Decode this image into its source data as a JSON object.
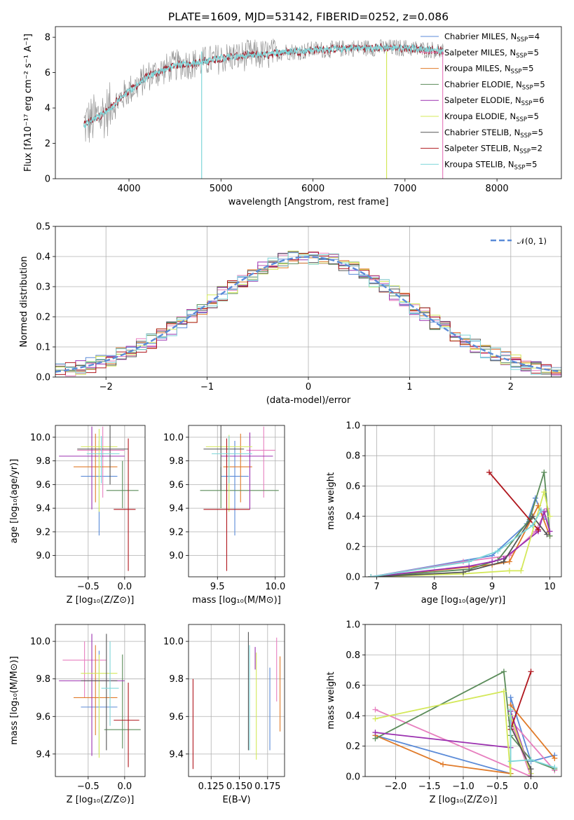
{
  "figure_title": "PLATE=1609, MJD=53142, FIBERID=0252, z=0.086",
  "colors": {
    "Chabrier MILES": "#5b8bd8",
    "Salpeter MILES": "#e77fbf",
    "Kroupa MILES": "#e07b2a",
    "Chabrier ELODIE": "#5b8c5a",
    "Salpeter ELODIE": "#9b30b0",
    "Kroupa ELODIE": "#d4e85a",
    "Chabrier STELIB": "#555555",
    "Salpeter STELIB": "#b0171e",
    "Kroupa STELIB": "#7ed6d9",
    "normal": "#5b8bd8"
  },
  "chart_data": [
    {
      "id": "spectrum",
      "type": "line",
      "title": "PLATE=1609, MJD=53142, FIBERID=0252, z=0.086",
      "xlabel": "wavelength [Angstrom, rest frame]",
      "ylabel": "Flux [fλ10⁻¹⁷ erg cm⁻² s⁻¹ A⁻¹]",
      "xlim": [
        3200,
        8700
      ],
      "ylim": [
        0,
        8.6
      ],
      "xticks": [
        "4000",
        "5000",
        "6000",
        "7000",
        "8000"
      ],
      "yticks": [
        "0",
        "2",
        "4",
        "6",
        "8"
      ],
      "legend_position": "upper-right",
      "legend": [
        {
          "name": "Chabrier MILES, N",
          "sub": "SSP",
          "tail": "=4",
          "color_key": "Chabrier MILES"
        },
        {
          "name": "Salpeter MILES, N",
          "sub": "SSP",
          "tail": "=5",
          "color_key": "Salpeter MILES"
        },
        {
          "name": "Kroupa MILES, N",
          "sub": "SSP",
          "tail": "=5",
          "color_key": "Kroupa MILES"
        },
        {
          "name": "Chabrier ELODIE, N",
          "sub": "SSP",
          "tail": "=5",
          "color_key": "Chabrier ELODIE"
        },
        {
          "name": "Salpeter ELODIE, N",
          "sub": "SSP",
          "tail": "=6",
          "color_key": "Salpeter ELODIE"
        },
        {
          "name": "Kroupa ELODIE, N",
          "sub": "SSP",
          "tail": "=5",
          "color_key": "Kroupa ELODIE"
        },
        {
          "name": "Chabrier STELIB, N",
          "sub": "SSP",
          "tail": "=5",
          "color_key": "Chabrier STELIB"
        },
        {
          "name": "Salpeter STELIB, N",
          "sub": "SSP",
          "tail": "=2",
          "color_key": "Salpeter STELIB"
        },
        {
          "name": "Kroupa STELIB, N",
          "sub": "SSP",
          "tail": "=5",
          "color_key": "Kroupa STELIB"
        }
      ],
      "continuum": {
        "x": [
          3500,
          3600,
          3700,
          3800,
          3900,
          4000,
          4100,
          4200,
          4300,
          4400,
          4500,
          4600,
          4700,
          4800,
          4900,
          5000,
          5100,
          5200,
          5300,
          5400,
          5500,
          5600,
          5700,
          5800,
          5900,
          6000,
          6200,
          6400,
          6600,
          6800,
          7000,
          7200,
          7300,
          7400
        ],
        "y": [
          3.0,
          3.3,
          3.6,
          4.0,
          4.5,
          5.0,
          5.3,
          5.8,
          6.0,
          6.2,
          6.4,
          6.5,
          6.5,
          6.6,
          6.7,
          6.8,
          6.9,
          6.9,
          7.0,
          7.0,
          7.0,
          7.1,
          7.2,
          7.2,
          7.2,
          7.3,
          7.3,
          7.4,
          7.4,
          7.4,
          7.4,
          7.3,
          7.3,
          7.2
        ]
      },
      "vertical_lines": [
        {
          "x": 4790,
          "color_key": "Kroupa STELIB"
        },
        {
          "x": 6800,
          "color_key": "Kroupa ELODIE"
        },
        {
          "x": 7410,
          "color_key": "Salpeter MILES"
        }
      ]
    },
    {
      "id": "residual-histogram",
      "type": "line",
      "xlabel": "(data-model)/error",
      "ylabel": "Normed distribution",
      "xlim": [
        -2.5,
        2.5
      ],
      "ylim": [
        0,
        0.5
      ],
      "xticks": [
        "−2",
        "−1",
        "0",
        "1",
        "2"
      ],
      "yticks": [
        "0.0",
        "0.1",
        "0.2",
        "0.3",
        "0.4",
        "0.5"
      ],
      "legend_position": "upper-right",
      "curve_label": "𝒩(0, 1)",
      "bin_width": 0.1,
      "normal": {
        "mu": 0,
        "sigma": 1
      }
    },
    {
      "id": "age-vs-Z",
      "type": "scatter",
      "xlabel": "Z [log₁₀(Z/Z⊙)]",
      "ylabel": "age  [log₁₀(age/yr)]",
      "xlim": [
        -0.95,
        0.28
      ],
      "ylim": [
        8.82,
        10.1
      ],
      "xticks": [
        "−0.5",
        "0.0"
      ],
      "yticks": [
        "9.0",
        "9.2",
        "9.4",
        "9.6",
        "9.8",
        "10.0"
      ],
      "points": [
        {
          "series": "Chabrier MILES",
          "x": -0.35,
          "y": 9.67,
          "xerr": [
            0.25,
            0.25
          ],
          "yerr": [
            0.5,
            0.3
          ]
        },
        {
          "series": "Salpeter MILES",
          "x": -0.3,
          "y": 9.89,
          "xerr": [
            0.35,
            0.3
          ],
          "yerr": [
            0.4,
            0.2
          ]
        },
        {
          "series": "Kroupa MILES",
          "x": -0.4,
          "y": 9.75,
          "xerr": [
            0.3,
            0.3
          ],
          "yerr": [
            0.3,
            0.28
          ]
        },
        {
          "series": "Chabrier ELODIE",
          "x": -0.03,
          "y": 9.55,
          "xerr": [
            0.22,
            0.22
          ],
          "yerr": [
            0.15,
            0.25
          ]
        },
        {
          "series": "Salpeter ELODIE",
          "x": -0.45,
          "y": 9.84,
          "xerr": [
            0.45,
            0.45
          ],
          "yerr": [
            0.45,
            0.25
          ]
        },
        {
          "series": "Kroupa ELODIE",
          "x": -0.35,
          "y": 9.92,
          "xerr": [
            0.25,
            0.25
          ],
          "yerr": [
            0.55,
            0.15
          ]
        },
        {
          "series": "Chabrier STELIB",
          "x": -0.2,
          "y": 9.9,
          "xerr": [
            0.45,
            0.25
          ],
          "yerr": [
            0.3,
            0.2
          ]
        },
        {
          "series": "Salpeter STELIB",
          "x": 0.05,
          "y": 9.39,
          "xerr": [
            0.2,
            0.1
          ],
          "yerr": [
            0.52,
            0.6
          ]
        },
        {
          "series": "Kroupa STELIB",
          "x": -0.32,
          "y": 9.86,
          "xerr": [
            0.2,
            0.25
          ],
          "yerr": [
            0.25,
            0.15
          ]
        }
      ]
    },
    {
      "id": "age-vs-mass",
      "type": "scatter",
      "xlabel": "mass [log₁₀(M/M⊙)]",
      "ylabel": "",
      "xlim": [
        9.25,
        10.08
      ],
      "ylim": [
        8.82,
        10.1
      ],
      "xticks": [
        "9.5",
        "10.0"
      ],
      "yticks": [
        "9.0",
        "9.2",
        "9.4",
        "9.6",
        "9.8",
        "10.0"
      ],
      "points": [
        {
          "series": "Chabrier MILES",
          "x": 9.65,
          "y": 9.67,
          "xerr": [
            0.12,
            0.12
          ],
          "yerr": [
            0.5,
            0.3
          ]
        },
        {
          "series": "Salpeter MILES",
          "x": 9.9,
          "y": 9.89,
          "xerr": [
            0.15,
            0.1
          ],
          "yerr": [
            0.4,
            0.2
          ]
        },
        {
          "series": "Kroupa MILES",
          "x": 9.7,
          "y": 9.75,
          "xerr": [
            0.15,
            0.1
          ],
          "yerr": [
            0.3,
            0.28
          ]
        },
        {
          "series": "Chabrier ELODIE",
          "x": 9.53,
          "y": 9.55,
          "xerr": [
            0.18,
            0.5
          ],
          "yerr": [
            0.15,
            0.2
          ]
        },
        {
          "series": "Salpeter ELODIE",
          "x": 9.78,
          "y": 9.84,
          "xerr": [
            0.25,
            0.2
          ],
          "yerr": [
            0.45,
            0.2
          ]
        },
        {
          "series": "Kroupa ELODIE",
          "x": 9.6,
          "y": 9.92,
          "xerr": [
            0.2,
            0.2
          ],
          "yerr": [
            0.55,
            0.1
          ]
        },
        {
          "series": "Chabrier STELIB",
          "x": 9.53,
          "y": 9.9,
          "xerr": [
            0.15,
            0.2
          ],
          "yerr": [
            0.35,
            0.2
          ]
        },
        {
          "series": "Salpeter STELIB",
          "x": 9.58,
          "y": 9.39,
          "xerr": [
            0.2,
            0.2
          ],
          "yerr": [
            0.52,
            0.6
          ]
        },
        {
          "series": "Kroupa STELIB",
          "x": 9.6,
          "y": 9.86,
          "xerr": [
            0.15,
            0.2
          ],
          "yerr": [
            0.25,
            0.15
          ]
        }
      ]
    },
    {
      "id": "mass-weight-vs-age",
      "type": "line",
      "xlabel": "age  [log₁₀(age/yr)]",
      "ylabel": "mass weight",
      "xlim": [
        6.8,
        10.2
      ],
      "ylim": [
        0,
        1
      ],
      "xticks": [
        "7",
        "8",
        "9",
        "10"
      ],
      "yticks": [
        "0.0",
        "0.2",
        "0.4",
        "0.6",
        "0.8",
        "1.0"
      ],
      "series": [
        {
          "series": "Chabrier MILES",
          "x": [
            6.9,
            9.0,
            9.6,
            9.75,
            9.9
          ],
          "y": [
            0.0,
            0.14,
            0.35,
            0.52,
            0.38
          ]
        },
        {
          "series": "Salpeter MILES",
          "x": [
            6.9,
            8.5,
            9.3,
            9.75,
            9.95
          ],
          "y": [
            0.0,
            0.1,
            0.14,
            0.3,
            0.45
          ]
        },
        {
          "series": "Kroupa MILES",
          "x": [
            6.9,
            9.0,
            9.3,
            9.8,
            10.0
          ],
          "y": [
            0.0,
            0.08,
            0.1,
            0.47,
            0.27
          ]
        },
        {
          "series": "Chabrier ELODIE",
          "x": [
            6.9,
            8.6,
            9.1,
            9.65,
            9.9,
            10.0
          ],
          "y": [
            0.0,
            0.05,
            0.11,
            0.38,
            0.69,
            0.27
          ]
        },
        {
          "series": "Salpeter ELODIE",
          "x": [
            6.9,
            8.6,
            9.0,
            9.2,
            9.8,
            9.9,
            10.0
          ],
          "y": [
            0.0,
            0.07,
            0.1,
            0.12,
            0.3,
            0.43,
            0.3
          ]
        },
        {
          "series": "Kroupa ELODIE",
          "x": [
            6.9,
            8.5,
            9.3,
            9.5,
            9.9,
            10.0
          ],
          "y": [
            0.0,
            0.02,
            0.04,
            0.04,
            0.56,
            0.4
          ]
        },
        {
          "series": "Chabrier STELIB",
          "x": [
            6.9,
            8.5,
            9.2,
            9.7,
            9.95
          ],
          "y": [
            0.0,
            0.03,
            0.1,
            0.4,
            0.28
          ]
        },
        {
          "series": "Salpeter STELIB",
          "x": [
            8.95,
            9.8
          ],
          "y": [
            0.69,
            0.31
          ]
        },
        {
          "series": "Kroupa STELIB",
          "x": [
            6.9,
            8.6,
            9.1,
            9.7,
            9.85
          ],
          "y": [
            0.0,
            0.1,
            0.17,
            0.34,
            0.44
          ]
        }
      ]
    },
    {
      "id": "mass-vs-Z",
      "type": "scatter",
      "xlabel": "Z [log₁₀(Z/Z⊙)]",
      "ylabel": "mass [log₁₀(M/M⊙)]",
      "xlim": [
        -0.95,
        0.28
      ],
      "ylim": [
        9.28,
        10.09
      ],
      "xticks": [
        "−0.5",
        "0.0"
      ],
      "yticks": [
        "9.4",
        "9.6",
        "9.8",
        "10.0"
      ],
      "points": [
        {
          "series": "Chabrier MILES",
          "x": -0.35,
          "y": 9.65,
          "xerr": [
            0.25,
            0.25
          ],
          "yerr": [
            0.25,
            0.3
          ]
        },
        {
          "series": "Salpeter MILES",
          "x": -0.55,
          "y": 9.9,
          "xerr": [
            0.3,
            0.3
          ],
          "yerr": [
            0.2,
            0.1
          ]
        },
        {
          "series": "Kroupa MILES",
          "x": -0.4,
          "y": 9.7,
          "xerr": [
            0.3,
            0.3
          ],
          "yerr": [
            0.2,
            0.28
          ]
        },
        {
          "series": "Chabrier ELODIE",
          "x": -0.03,
          "y": 9.53,
          "xerr": [
            0.25,
            0.25
          ],
          "yerr": [
            0.1,
            0.4
          ]
        },
        {
          "series": "Salpeter ELODIE",
          "x": -0.45,
          "y": 9.79,
          "xerr": [
            0.45,
            0.45
          ],
          "yerr": [
            0.4,
            0.25
          ]
        },
        {
          "series": "Kroupa ELODIE",
          "x": -0.35,
          "y": 9.83,
          "xerr": [
            0.25,
            0.25
          ],
          "yerr": [
            0.45,
            0.1
          ]
        },
        {
          "series": "Chabrier STELIB",
          "x": -0.25,
          "y": 9.79,
          "xerr": [
            0.35,
            0.15
          ],
          "yerr": [
            0.37,
            0.25
          ]
        },
        {
          "series": "Salpeter STELIB",
          "x": 0.05,
          "y": 9.58,
          "xerr": [
            0.2,
            0.15
          ],
          "yerr": [
            0.25,
            0.2
          ]
        },
        {
          "series": "Kroupa STELIB",
          "x": -0.2,
          "y": 9.75,
          "xerr": [
            0.12,
            0.12
          ],
          "yerr": [
            0.2,
            0.25
          ]
        }
      ]
    },
    {
      "id": "mass-vs-EBV",
      "type": "scatter",
      "xlabel": "E(B-V)",
      "ylabel": "",
      "xlim": [
        0.105,
        0.19
      ],
      "ylim": [
        9.28,
        10.09
      ],
      "xticks": [
        "0.125",
        "0.150",
        "0.175"
      ],
      "yticks": [
        "9.4",
        "9.6",
        "9.8",
        "10.0"
      ],
      "points": [
        {
          "series": "Salpeter STELIB",
          "x": 0.109,
          "y": 9.56,
          "yerr": [
            0.24,
            0.24
          ]
        },
        {
          "series": "Chabrier STELIB",
          "x": 0.158,
          "y": 9.74,
          "yerr": [
            0.32,
            0.31
          ]
        },
        {
          "series": "Kroupa STELIB",
          "x": 0.159,
          "y": 9.7,
          "yerr": [
            0.28,
            0.28
          ]
        },
        {
          "series": "Salpeter ELODIE",
          "x": 0.164,
          "y": 9.9,
          "yerr": [
            0.05,
            0.07
          ]
        },
        {
          "series": "Kroupa ELODIE",
          "x": 0.165,
          "y": 9.65,
          "yerr": [
            0.28,
            0.29
          ]
        },
        {
          "series": "Chabrier MILES",
          "x": 0.177,
          "y": 9.64,
          "yerr": [
            0.22,
            0.22
          ]
        },
        {
          "series": "Salpeter MILES",
          "x": 0.183,
          "y": 9.84,
          "yerr": [
            0.16,
            0.18
          ]
        },
        {
          "series": "Kroupa MILES",
          "x": 0.186,
          "y": 9.72,
          "yerr": [
            0.2,
            0.2
          ]
        }
      ]
    },
    {
      "id": "mass-weight-vs-Z",
      "type": "line",
      "xlabel": "Z [log₁₀(Z/Z⊙)]",
      "ylabel": "mass weight",
      "xlim": [
        -2.45,
        0.45
      ],
      "ylim": [
        0,
        1
      ],
      "xticks": [
        "−2.0",
        "−1.5",
        "−1.0",
        "−0.5",
        "0.0"
      ],
      "yticks": [
        "0.0",
        "0.2",
        "0.4",
        "0.6",
        "0.8",
        "1.0"
      ],
      "series": [
        {
          "series": "Chabrier MILES",
          "x": [
            -2.3,
            -0.3,
            -0.3,
            0.0,
            0.35
          ],
          "y": [
            0.27,
            0.02,
            0.52,
            0.1,
            0.14
          ]
        },
        {
          "series": "Salpeter MILES",
          "x": [
            -2.3,
            0.0,
            -0.3,
            0.35
          ],
          "y": [
            0.44,
            0.0,
            0.37,
            0.04
          ]
        },
        {
          "series": "Kroupa MILES",
          "x": [
            -2.3,
            -1.3,
            -0.3,
            -0.3,
            0.35
          ],
          "y": [
            0.27,
            0.08,
            0.02,
            0.47,
            0.12
          ]
        },
        {
          "series": "Chabrier ELODIE",
          "x": [
            -2.3,
            -0.4,
            -0.3,
            0.0,
            0.35
          ],
          "y": [
            0.25,
            0.69,
            0.27,
            0.11,
            0.05
          ]
        },
        {
          "series": "Salpeter ELODIE",
          "x": [
            -2.3,
            -0.3,
            -0.3,
            0.0
          ],
          "y": [
            0.29,
            0.19,
            0.43,
            0.02
          ]
        },
        {
          "series": "Kroupa ELODIE",
          "x": [
            -2.3,
            -0.4,
            -0.3,
            -0.3,
            0.0
          ],
          "y": [
            0.38,
            0.56,
            0.0,
            0.4,
            0.02
          ]
        },
        {
          "series": "Chabrier STELIB",
          "x": [
            -0.3,
            0.0,
            0.0
          ],
          "y": [
            0.33,
            0.05,
            0.0
          ]
        },
        {
          "series": "Salpeter STELIB",
          "x": [
            0.0,
            -0.3
          ],
          "y": [
            0.69,
            0.31
          ]
        },
        {
          "series": "Kroupa STELIB",
          "x": [
            -0.3,
            -0.3,
            0.0,
            0.35
          ],
          "y": [
            0.44,
            0.1,
            0.11,
            0.06
          ]
        }
      ]
    }
  ]
}
